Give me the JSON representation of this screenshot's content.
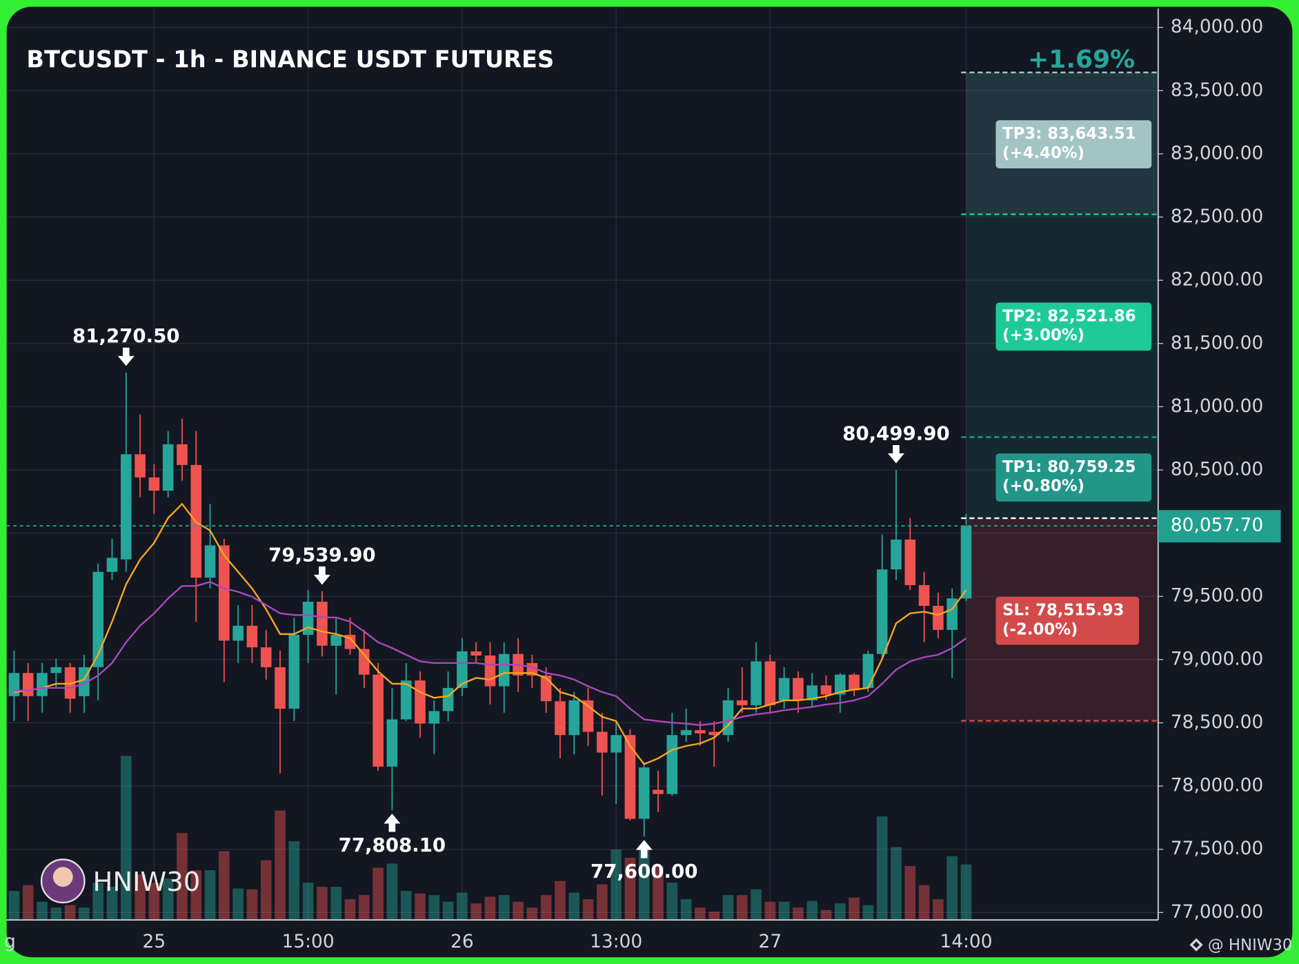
{
  "chart_data": {
    "type": "candlestick",
    "title": "BTCUSDT - 1h - BINANCE USDT FUTURES",
    "categories": [
      "g",
      null,
      null,
      null,
      null,
      null,
      null,
      null,
      null,
      null,
      "25",
      null,
      null,
      null,
      null,
      null,
      null,
      null,
      null,
      null,
      null,
      "15:00",
      null,
      null,
      null,
      null,
      null,
      null,
      null,
      null,
      null,
      null,
      "26",
      null,
      null,
      null,
      null,
      null,
      null,
      null,
      null,
      null,
      null,
      "13:00",
      null,
      null,
      null,
      null,
      null,
      null,
      null,
      null,
      null,
      null,
      "27",
      null,
      null,
      null,
      null,
      null,
      null,
      null,
      null,
      null,
      null,
      null,
      null,
      null,
      "14:00"
    ],
    "open": [
      78711,
      78894,
      78711,
      78894,
      78940,
      78711,
      78940,
      79694,
      79792,
      80624,
      80441,
      80336,
      80703,
      80539,
      79648,
      79903,
      79150,
      79268,
      79097,
      78940,
      78612,
      79196,
      79458,
      79110,
      79196,
      79084,
      78881,
      78154,
      78527,
      78835,
      78494,
      78593,
      78776,
      79065,
      79032,
      78789,
      79045,
      78973,
      78874,
      78671,
      78403,
      78678,
      78429,
      78265,
      78403,
      77741,
      77970,
      77937,
      78403,
      78442,
      78429,
      78403,
      78678,
      78639,
      78986,
      78678,
      78855,
      78678,
      78796,
      78724,
      78881,
      78776,
      79045,
      79713,
      79949,
      79589,
      79425,
      79235,
      79484
    ],
    "high": [
      79071,
      78973,
      78973,
      79006,
      78973,
      79038,
      79759,
      79956,
      81270.5,
      80939,
      80546,
      80808,
      80906,
      80808,
      80231,
      79956,
      79432,
      79432,
      79235,
      79071,
      79333,
      79550,
      79539.9,
      79333,
      79333,
      79235,
      78973,
      78776,
      78973,
      78907,
      78678,
      78907,
      79169,
      79137,
      79137,
      79137,
      79169,
      79038,
      78940,
      78776,
      78744,
      78776,
      78580,
      78514,
      78449,
      78186,
      78121,
      78580,
      78612,
      78514,
      78514,
      78776,
      78940,
      79137,
      79038,
      78940,
      78907,
      78894,
      78874,
      78894,
      78894,
      79071,
      79989,
      80499.9,
      80120,
      79694,
      79530,
      79563,
      80153
    ],
    "low": [
      78514,
      78514,
      78580,
      78776,
      78580,
      78580,
      78678,
      79628,
      79694,
      80284,
      80153,
      80284,
      80415,
      79300,
      79563,
      78822,
      78973,
      78973,
      78842,
      78101,
      78514,
      78973,
      79025,
      78724,
      79038,
      78776,
      78121,
      77808.1,
      78514,
      78383,
      78252,
      78514,
      78711,
      78973,
      78645,
      78580,
      78744,
      78776,
      78580,
      78219,
      78252,
      78317,
      77924,
      77859,
      77728,
      77600,
      77793,
      77924,
      78350,
      78317,
      78154,
      78350,
      78580,
      78580,
      78580,
      78612,
      78580,
      78632,
      78678,
      78580,
      78711,
      78744,
      79006,
      79628,
      79550,
      79137,
      79169,
      78855,
      79464
    ],
    "close": [
      78894,
      78711,
      78894,
      78940,
      78691,
      78940,
      79694,
      79805,
      80624,
      80441,
      80336,
      80703,
      80539,
      79648,
      79903,
      79150,
      79268,
      79097,
      78940,
      78612,
      79196,
      79458,
      79110,
      79196,
      79084,
      78881,
      78154,
      78527,
      78835,
      78494,
      78593,
      78776,
      79065,
      79032,
      78789,
      79045,
      78874,
      78874,
      78671,
      78403,
      78678,
      78429,
      78265,
      78403,
      77741,
      78147,
      77937,
      78403,
      78442,
      78416,
      78403,
      78678,
      78639,
      78986,
      78639,
      78855,
      78678,
      78796,
      78724,
      78881,
      78757,
      79045,
      79713,
      79949,
      79589,
      79425,
      79235,
      79484,
      80057.7
    ],
    "volume": [
      35,
      42,
      22,
      15,
      18,
      15,
      45,
      40,
      198,
      55,
      45,
      50,
      105,
      60,
      60,
      83,
      38,
      37,
      72,
      132,
      95,
      45,
      40,
      40,
      25,
      30,
      63,
      68,
      35,
      32,
      30,
      22,
      33,
      20,
      28,
      30,
      22,
      15,
      30,
      47,
      33,
      25,
      43,
      85,
      75,
      85,
      65,
      45,
      25,
      15,
      10,
      30,
      30,
      37,
      22,
      22,
      15,
      23,
      12,
      20,
      27,
      18,
      125,
      88,
      65,
      42,
      25,
      77,
      67
    ],
    "up_color": "#26a69a",
    "down_color": "#ef5350",
    "moving_averages": [
      {
        "color": "#f5a623",
        "values": [
          78743,
          78756,
          78776,
          78809,
          78809,
          78842,
          79038,
          79300,
          79595,
          79792,
          79923,
          80120,
          80231,
          80087,
          80021,
          79825,
          79694,
          79563,
          79399,
          79202,
          79202,
          79255,
          79222,
          79202,
          79169,
          79038,
          78907,
          78809,
          78809,
          78743,
          78698,
          78711,
          78809,
          78855,
          78842,
          78894,
          78894,
          78894,
          78855,
          78743,
          78711,
          78632,
          78547,
          78514,
          78317,
          78173,
          78219,
          78285,
          78317,
          78337,
          78383,
          78481,
          78612,
          78612,
          78645,
          78678,
          78678,
          78691,
          78711,
          78743,
          78763,
          78776,
          79006,
          79287,
          79366,
          79379,
          79353,
          79399,
          79550
        ]
      },
      {
        "color": "#ab47bc",
        "values": [
          78756,
          78756,
          78776,
          78776,
          78776,
          78809,
          78874,
          78973,
          79137,
          79268,
          79366,
          79484,
          79582,
          79582,
          79615,
          79563,
          79536,
          79497,
          79432,
          79366,
          79353,
          79353,
          79333,
          79333,
          79300,
          79222,
          79137,
          79091,
          79038,
          78986,
          78973,
          78973,
          78973,
          78973,
          78960,
          78960,
          78960,
          78940,
          78894,
          78874,
          78842,
          78789,
          78743,
          78711,
          78612,
          78527,
          78514,
          78501,
          78494,
          78481,
          78494,
          78514,
          78547,
          78567,
          78580,
          78599,
          78612,
          78626,
          78645,
          78658,
          78678,
          78711,
          78809,
          78920,
          78986,
          79019,
          79038,
          79091,
          79169
        ]
      }
    ],
    "ylim": [
      76941,
      84150
    ],
    "yticks": [
      {
        "value": 77000,
        "label": "77,000.00"
      },
      {
        "value": 77500,
        "label": "77,500.00"
      },
      {
        "value": 78000,
        "label": "78,000.00"
      },
      {
        "value": 78500,
        "label": "78,500.00"
      },
      {
        "value": 79000,
        "label": "79,000.00"
      },
      {
        "value": 79500,
        "label": "79,500.00"
      },
      {
        "value": 80000,
        "label": "80,000.00"
      },
      {
        "value": 80500,
        "label": "80,500.00"
      },
      {
        "value": 81000,
        "label": "81,000.00"
      },
      {
        "value": 81500,
        "label": "81,500.00"
      },
      {
        "value": 82000,
        "label": "82,000.00"
      },
      {
        "value": 82500,
        "label": "82,500.00"
      },
      {
        "value": 83000,
        "label": "83,000.00"
      },
      {
        "value": 83500,
        "label": "83,500.00"
      },
      {
        "value": 84000,
        "label": "84,000.00"
      }
    ],
    "grid": true,
    "last_price": {
      "value": 80057.7,
      "label": "80,057.70",
      "color": "#22a08f"
    },
    "annotations": [
      {
        "index": 8,
        "kind": "high",
        "label": "81,270.50"
      },
      {
        "index": 22,
        "kind": "high",
        "label": "79,539.90"
      },
      {
        "index": 27,
        "kind": "low",
        "label": "77,808.10"
      },
      {
        "index": 45,
        "kind": "low",
        "label": "77,600.00"
      },
      {
        "index": 63,
        "kind": "high",
        "label": "80,499.90"
      }
    ],
    "position": {
      "entry": 80118.3,
      "pnl_label": "+1.69%",
      "targets": [
        {
          "value": 80759.25,
          "label": "TP1: 80,759.25",
          "pct": "(+0.80%)",
          "color": "#23968a"
        },
        {
          "value": 82521.86,
          "label": "TP2: 82,521.86",
          "pct": "(+3.00%)",
          "color": "#1ecb98"
        },
        {
          "value": 83643.51,
          "label": "TP3: 83,643.51",
          "pct": "(+4.40%)",
          "color": "#a3c4c4"
        }
      ],
      "stop": {
        "value": 78515.93,
        "label": "SL: 78,515.93",
        "pct": "(-2.00%)",
        "color": "#d34a4a"
      }
    },
    "watermark": "HNIW30",
    "footer": "@ HNIW30"
  }
}
